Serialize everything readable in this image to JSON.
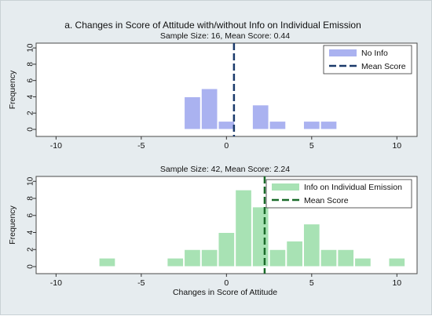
{
  "figure": {
    "title": "a. Changes in Score of Attitude with/without Info on Individual Emission"
  },
  "chart_data": [
    {
      "type": "bar",
      "subtitle": "Sample Size: 16, Mean Score: 0.44",
      "ylabel": "Frequency",
      "xlabel": "",
      "xlim": [
        -10.8,
        11.0
      ],
      "ylim": [
        0,
        10.3
      ],
      "xticks": [
        "-10",
        "-5",
        "0",
        "5",
        "10"
      ],
      "xtick_values": [
        -10,
        -5,
        0,
        5,
        10
      ],
      "yticks": [
        "0",
        "2",
        "4",
        "6",
        "8",
        "10"
      ],
      "ytick_values": [
        0,
        2,
        4,
        6,
        8,
        10
      ],
      "bin_width": 1,
      "bars": [
        {
          "x0": -2.5,
          "x1": -1.5,
          "y": 4
        },
        {
          "x0": -1.5,
          "x1": -0.5,
          "y": 5
        },
        {
          "x0": -0.5,
          "x1": 0.5,
          "y": 1
        },
        {
          "x0": 1.5,
          "x1": 2.5,
          "y": 3
        },
        {
          "x0": 2.5,
          "x1": 3.5,
          "y": 1
        },
        {
          "x0": 4.5,
          "x1": 5.5,
          "y": 1
        },
        {
          "x0": 5.5,
          "x1": 6.5,
          "y": 1
        }
      ],
      "mean": 0.44,
      "bar_color": "#aab2f0",
      "bar_stroke": "#8f98e8",
      "mean_color": "#1a3a6b",
      "legend": {
        "position": "top-right",
        "bar_label": "No Info",
        "line_label": "Mean Score"
      },
      "grid": false
    },
    {
      "type": "bar",
      "subtitle": "Sample Size: 42, Mean Score: 2.24",
      "ylabel": "Frequency",
      "xlabel": "Changes in Score of Attitude",
      "xlim": [
        -10.8,
        11.0
      ],
      "ylim": [
        0,
        10.3
      ],
      "xticks": [
        "-10",
        "-5",
        "0",
        "5",
        "10"
      ],
      "xtick_values": [
        -10,
        -5,
        0,
        5,
        10
      ],
      "yticks": [
        "0",
        "2",
        "4",
        "6",
        "8",
        "10"
      ],
      "ytick_values": [
        0,
        2,
        4,
        6,
        8,
        10
      ],
      "bin_width": 1,
      "bars": [
        {
          "x0": -7.5,
          "x1": -6.5,
          "y": 1
        },
        {
          "x0": -3.5,
          "x1": -2.5,
          "y": 1
        },
        {
          "x0": -2.5,
          "x1": -1.5,
          "y": 2
        },
        {
          "x0": -1.5,
          "x1": -0.5,
          "y": 2
        },
        {
          "x0": -0.5,
          "x1": 0.5,
          "y": 4
        },
        {
          "x0": 0.5,
          "x1": 1.5,
          "y": 9
        },
        {
          "x0": 1.5,
          "x1": 2.5,
          "y": 7
        },
        {
          "x0": 2.5,
          "x1": 3.5,
          "y": 2
        },
        {
          "x0": 3.5,
          "x1": 4.5,
          "y": 3
        },
        {
          "x0": 4.5,
          "x1": 5.5,
          "y": 5
        },
        {
          "x0": 5.5,
          "x1": 6.5,
          "y": 2
        },
        {
          "x0": 6.5,
          "x1": 7.5,
          "y": 2
        },
        {
          "x0": 7.5,
          "x1": 8.5,
          "y": 1
        },
        {
          "x0": 9.5,
          "x1": 10.5,
          "y": 1
        }
      ],
      "mean": 2.24,
      "bar_color": "#a8e2b4",
      "bar_stroke": "#8fd3a0",
      "mean_color": "#1a6b2a",
      "legend": {
        "position": "top-right",
        "bar_label": "Info on Individual Emission",
        "line_label": "Mean Score"
      },
      "grid": false
    }
  ]
}
